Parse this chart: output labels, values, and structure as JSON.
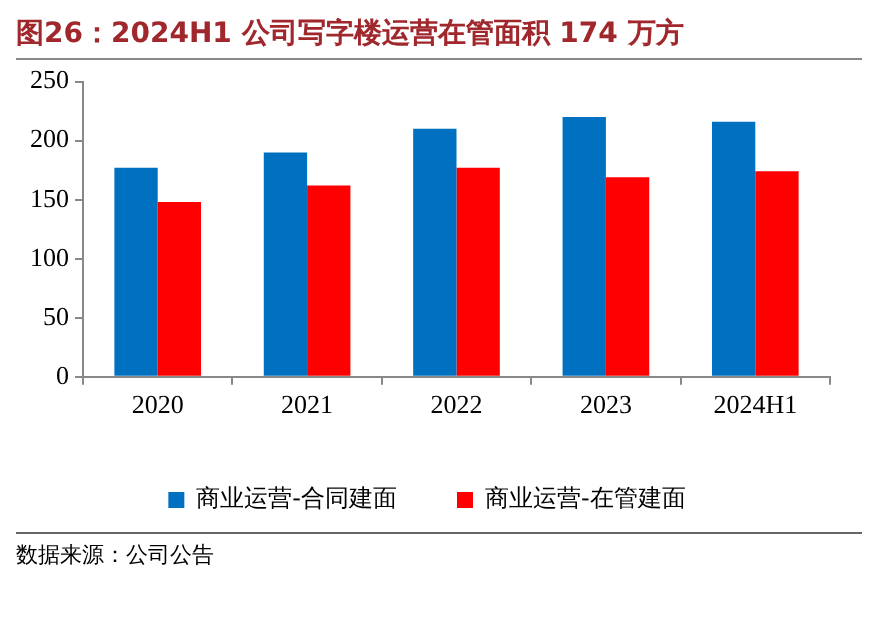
{
  "chart_data": {
    "type": "bar",
    "title": "图26：2024H1 公司写字楼运营在管面积 174 万方",
    "categories": [
      "2020",
      "2021",
      "2022",
      "2023",
      "2024H1"
    ],
    "series": [
      {
        "name": "商业运营-合同建面",
        "color": "#0070c0",
        "values": [
          177,
          190,
          210,
          220,
          216
        ]
      },
      {
        "name": "商业运营-在管建面",
        "color": "#ff0000",
        "values": [
          148,
          162,
          177,
          169,
          174
        ]
      }
    ],
    "ylim": [
      0,
      250
    ],
    "yticks": [
      0,
      50,
      100,
      150,
      200,
      250
    ],
    "legend": "bottom",
    "annotations": [
      "数据来源：公司公告"
    ]
  }
}
